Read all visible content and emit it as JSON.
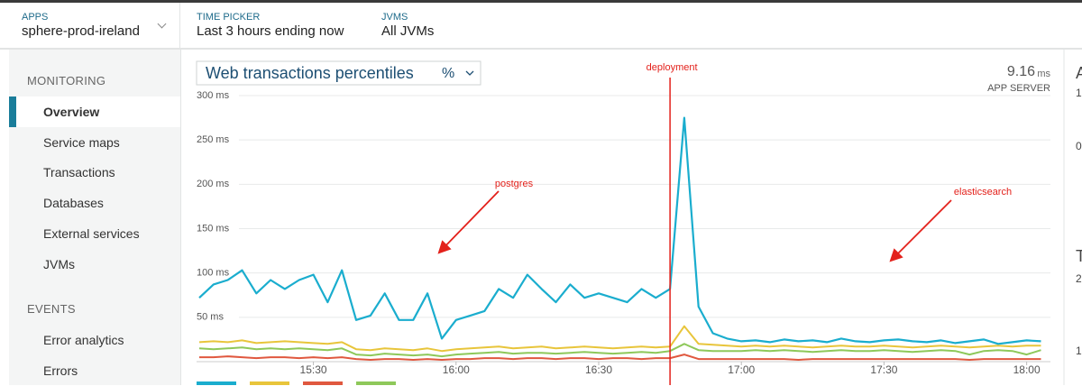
{
  "header": {
    "apps_label": "APPS",
    "app": "sphere-prod-ireland",
    "time_label": "TIME PICKER",
    "time": "Last 3 hours ending now",
    "jvms_label": "JVMS",
    "jvms": "All JVMs"
  },
  "sidebar": {
    "sections": [
      {
        "title": "MONITORING",
        "items": [
          "Overview",
          "Service maps",
          "Transactions",
          "Databases",
          "External services",
          "JVMs"
        ]
      },
      {
        "title": "EVENTS",
        "items": [
          "Error analytics",
          "Errors"
        ]
      }
    ]
  },
  "chart_data": {
    "type": "line",
    "title": "Web transactions percentiles",
    "unit_selector": "%",
    "summary_value": 9.16,
    "summary_unit": "ms",
    "summary_label": "APP SERVER",
    "x": [
      "15:06",
      "15:09",
      "15:12",
      "15:15",
      "15:18",
      "15:21",
      "15:24",
      "15:27",
      "15:30",
      "15:33",
      "15:36",
      "15:39",
      "15:42",
      "15:45",
      "15:48",
      "15:51",
      "15:54",
      "15:57",
      "16:00",
      "16:03",
      "16:06",
      "16:09",
      "16:12",
      "16:15",
      "16:18",
      "16:21",
      "16:24",
      "16:27",
      "16:30",
      "16:33",
      "16:36",
      "16:39",
      "16:42",
      "16:45",
      "16:48",
      "16:51",
      "16:54",
      "16:57",
      "17:00",
      "17:03",
      "17:06",
      "17:09",
      "17:12",
      "17:15",
      "17:18",
      "17:21",
      "17:24",
      "17:27",
      "17:30",
      "17:33",
      "17:36",
      "17:39",
      "17:42",
      "17:45",
      "17:48",
      "17:51",
      "17:54",
      "17:57",
      "18:00",
      "18:03"
    ],
    "xlim": [
      "15:06",
      "18:05"
    ],
    "xticks": [
      "15:30",
      "16:00",
      "16:30",
      "17:00",
      "17:30",
      "18:00"
    ],
    "ylim": [
      0,
      300
    ],
    "yticks": [
      {
        "value": 50,
        "label": "50 ms"
      },
      {
        "value": 100,
        "label": "100 ms"
      },
      {
        "value": 150,
        "label": "150 ms"
      },
      {
        "value": 200,
        "label": "200 ms"
      },
      {
        "value": 250,
        "label": "250 ms"
      },
      {
        "value": 300,
        "label": "300 ms"
      }
    ],
    "grid": true,
    "series": [
      {
        "color": "#1aadce",
        "values": [
          72,
          87,
          92,
          103,
          77,
          92,
          82,
          92,
          98,
          67,
          103,
          47,
          52,
          77,
          47,
          47,
          77,
          26,
          47,
          52,
          57,
          82,
          72,
          98,
          82,
          67,
          87,
          72,
          77,
          72,
          67,
          82,
          72,
          82,
          275,
          62,
          32,
          26,
          23,
          24,
          22,
          25,
          23,
          24,
          22,
          26,
          23,
          22,
          24,
          25,
          23,
          22,
          24,
          21,
          23,
          25,
          20,
          22,
          24,
          23
        ]
      },
      {
        "color": "#e8c53b",
        "values": [
          22,
          23,
          22,
          24,
          21,
          22,
          23,
          22,
          21,
          20,
          22,
          14,
          13,
          15,
          14,
          13,
          15,
          12,
          14,
          15,
          16,
          17,
          15,
          16,
          17,
          15,
          16,
          17,
          16,
          15,
          16,
          17,
          16,
          17,
          40,
          20,
          19,
          18,
          17,
          18,
          17,
          18,
          17,
          16,
          17,
          18,
          17,
          17,
          18,
          17,
          16,
          17,
          18,
          17,
          16,
          17,
          18,
          17,
          18,
          18
        ]
      },
      {
        "color": "#e0583f",
        "values": [
          5,
          5,
          6,
          5,
          4,
          5,
          5,
          4,
          5,
          4,
          5,
          3,
          2,
          3,
          3,
          2,
          3,
          2,
          3,
          3,
          4,
          4,
          3,
          4,
          4,
          3,
          4,
          4,
          3,
          4,
          4,
          3,
          4,
          4,
          8,
          3,
          3,
          3,
          3,
          3,
          3,
          3,
          2,
          3,
          3,
          3,
          3,
          3,
          3,
          3,
          3,
          3,
          3,
          3,
          2,
          3,
          3,
          3,
          3,
          3
        ]
      },
      {
        "color": "#8ec85a",
        "values": [
          15,
          14,
          15,
          16,
          14,
          15,
          14,
          15,
          14,
          13,
          15,
          8,
          7,
          9,
          8,
          7,
          8,
          6,
          8,
          9,
          10,
          11,
          9,
          10,
          10,
          9,
          10,
          11,
          10,
          9,
          10,
          11,
          10,
          12,
          20,
          13,
          12,
          12,
          12,
          13,
          12,
          13,
          12,
          11,
          12,
          13,
          12,
          12,
          13,
          12,
          11,
          12,
          13,
          12,
          8,
          12,
          13,
          12,
          8,
          13
        ]
      }
    ],
    "markers": [
      {
        "label": "deployment",
        "x": "16:45"
      }
    ],
    "annotations": [
      "postgres",
      "elasticsearch"
    ]
  },
  "right_panel": [
    "A",
    "1",
    "0",
    "T",
    "2",
    "1"
  ]
}
